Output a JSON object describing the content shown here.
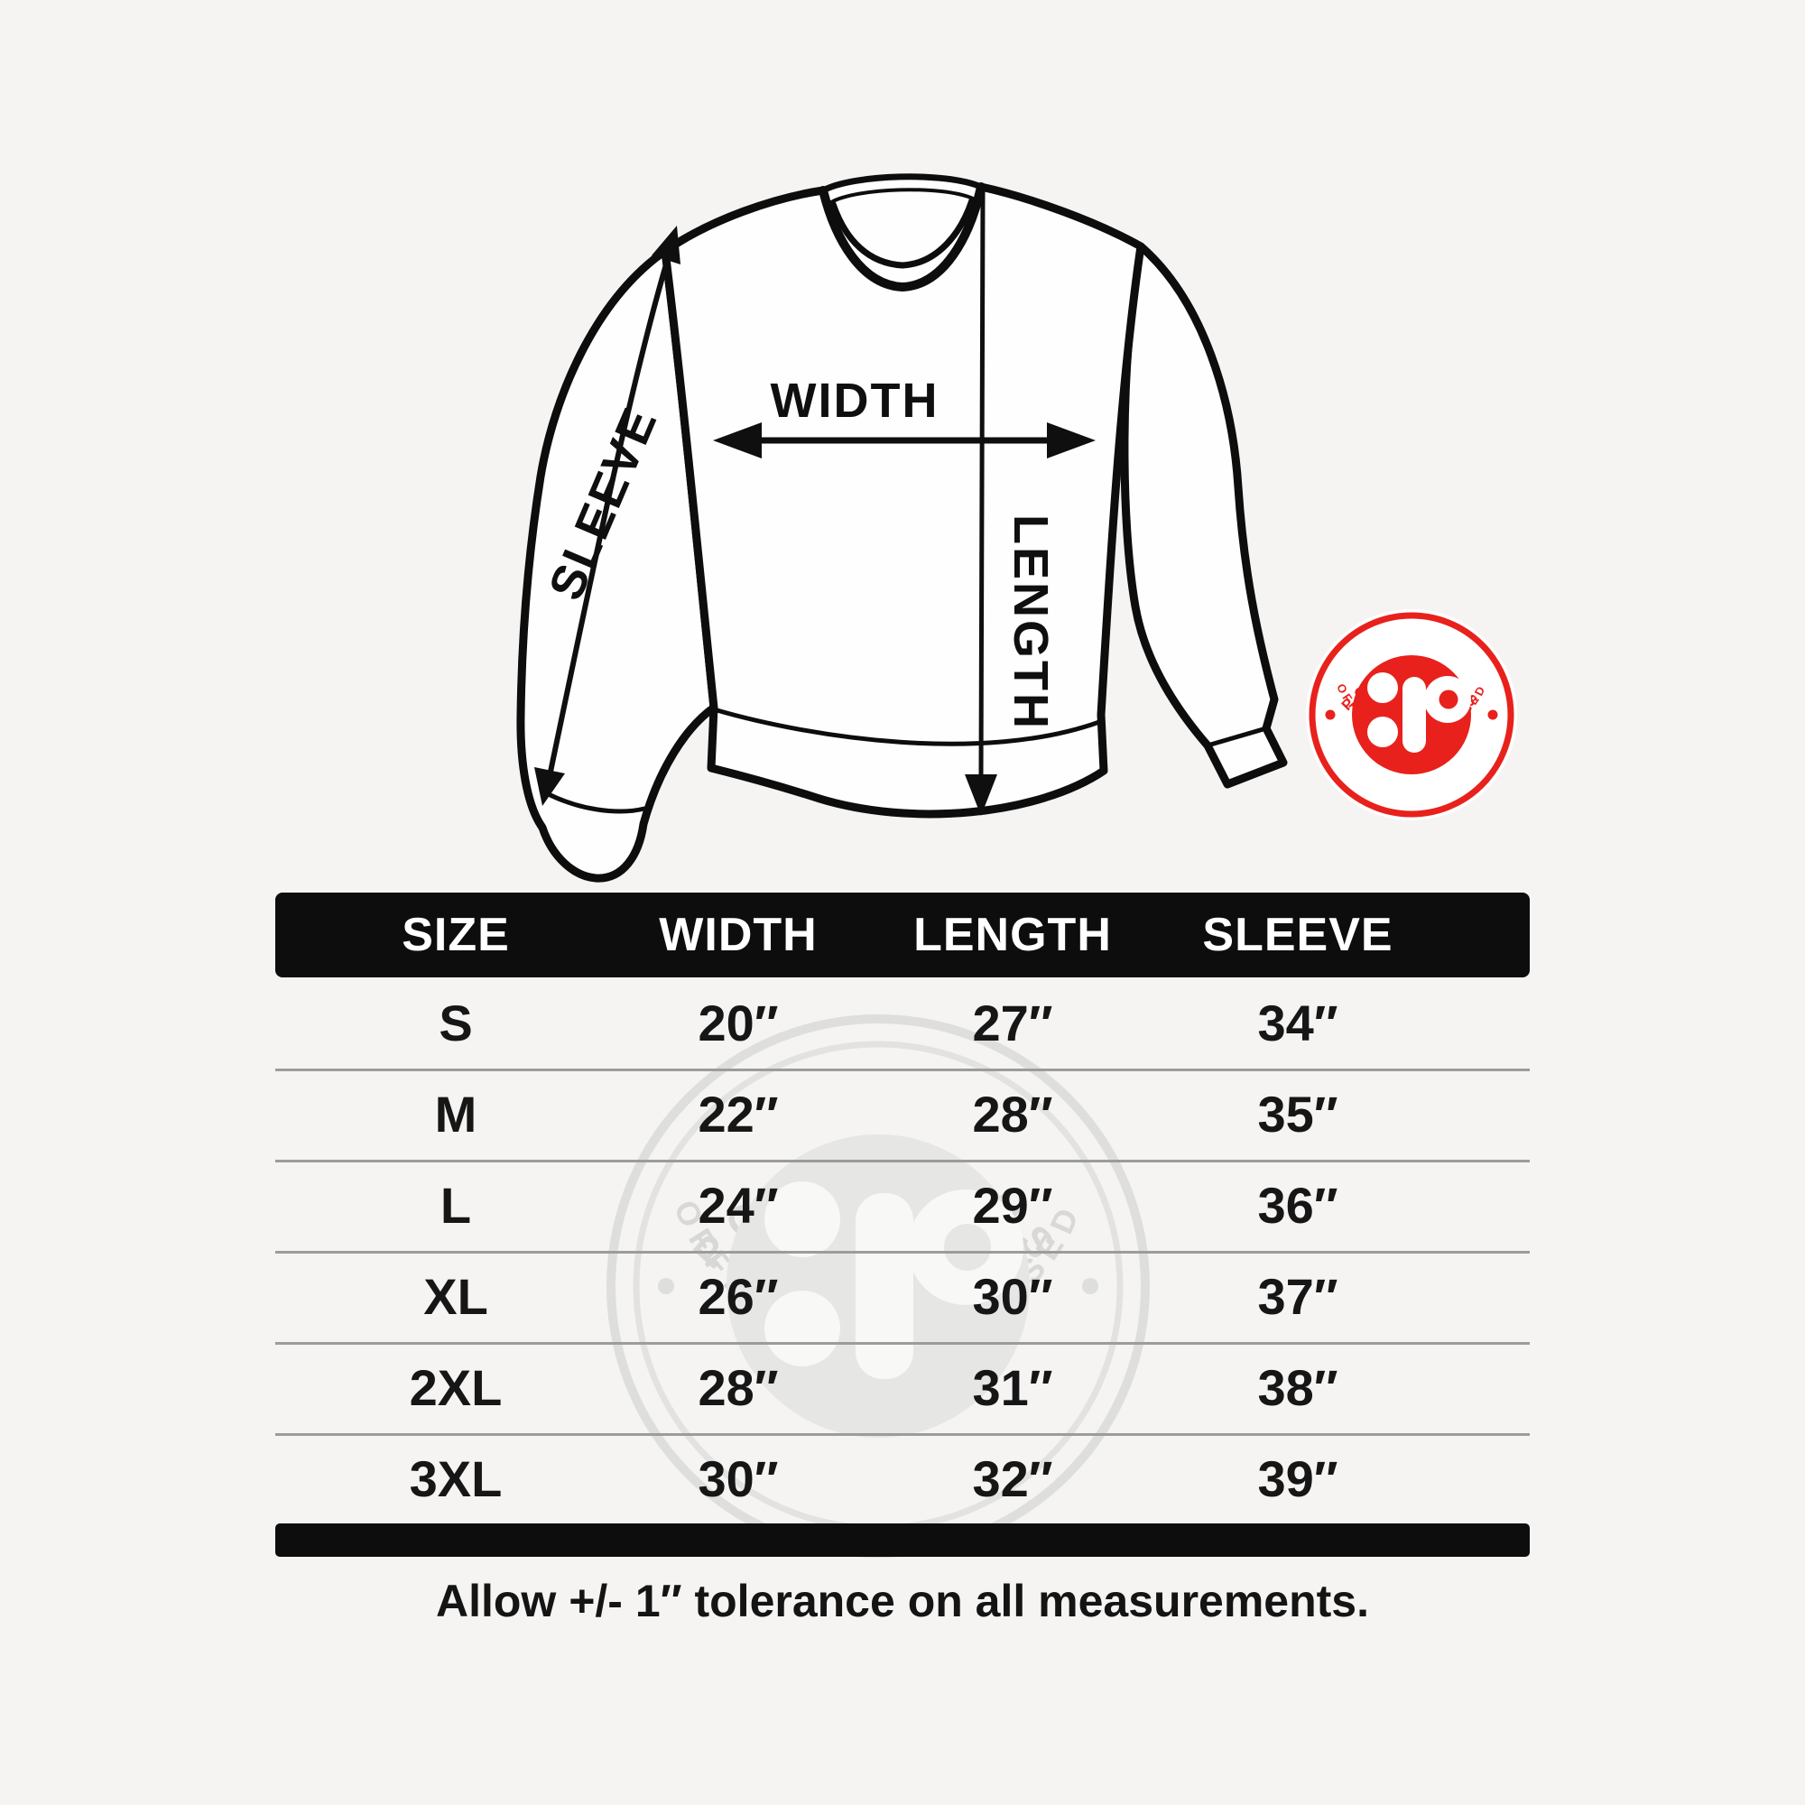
{
  "page": {
    "background": "#f5f4f3"
  },
  "diagram": {
    "width_label": "WIDTH",
    "length_label": "LENGTH",
    "sleeve_label": "SLEEVE"
  },
  "badge": {
    "brand": "POPHUMANS",
    "status": "OFFICIALLY LICENSED",
    "monogram": ":P",
    "color": "#e8211c"
  },
  "watermark": {
    "brand": "POPHUMANS",
    "status": "OFFICIALLY LICENSED"
  },
  "table": {
    "headers": [
      "SIZE",
      "WIDTH",
      "LENGTH",
      "SLEEVE"
    ],
    "rows": [
      [
        "S",
        "20″",
        "27″",
        "34″"
      ],
      [
        "M",
        "22″",
        "28″",
        "35″"
      ],
      [
        "L",
        "24″",
        "29″",
        "36″"
      ],
      [
        "XL",
        "26″",
        "30″",
        "37″"
      ],
      [
        "2XL",
        "28″",
        "31″",
        "38″"
      ],
      [
        "3XL",
        "30″",
        "32″",
        "39″"
      ]
    ],
    "note": "Allow +/- 1″ tolerance on all measurements."
  }
}
